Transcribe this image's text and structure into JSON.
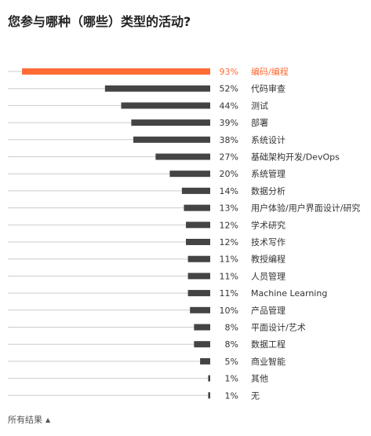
{
  "title": "您参与哪种（哪些）类型的活动?",
  "footer": {
    "label": "所有结果",
    "toggle_icon": "triangle-up-icon"
  },
  "colors": {
    "highlight": "#ff6b35",
    "bar": "#444444",
    "baseline": "#cccccc",
    "text": "#333333"
  },
  "chart_data": {
    "type": "bar",
    "orientation": "horizontal",
    "xlim": [
      0,
      100
    ],
    "grid": false,
    "highlighted_category": "编码/编程",
    "categories": [
      "编码/编程",
      "代码审查",
      "测试",
      "部署",
      "系统设计",
      "基础架构开发/DevOps",
      "系统管理",
      "数据分析",
      "用户体验/用户界面设计/研究",
      "学术研究",
      "技术写作",
      "教授编程",
      "人员管理",
      "Machine Learning",
      "产品管理",
      "平面设计/艺术",
      "数据工程",
      "商业智能",
      "其他",
      "无"
    ],
    "values": [
      93,
      52,
      44,
      39,
      38,
      27,
      20,
      14,
      13,
      12,
      12,
      11,
      11,
      11,
      10,
      8,
      8,
      5,
      1,
      1
    ],
    "value_labels": [
      "93%",
      "52%",
      "44%",
      "39%",
      "38%",
      "27%",
      "20%",
      "14%",
      "13%",
      "12%",
      "12%",
      "11%",
      "11%",
      "11%",
      "10%",
      "8%",
      "8%",
      "5%",
      "1%",
      "1%"
    ]
  }
}
